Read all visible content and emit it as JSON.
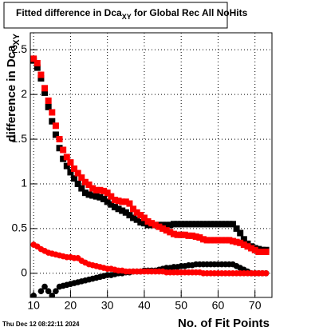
{
  "chart_data": {
    "type": "scatter",
    "title": "Fitted difference in Dca",
    "title_subscript": "XY",
    "title_suffix": " for Global Rec All NoHits",
    "y_label": "difference in Dca",
    "y_label_subscript": "XY",
    "x_label": "No. of Fit Points",
    "timestamp": "Thu Dec 12 08:22:11 2024",
    "x": [
      10,
      11,
      12,
      13,
      14,
      15,
      16,
      17,
      18,
      19,
      20,
      21,
      22,
      23,
      24,
      25,
      26,
      27,
      28,
      29,
      30,
      31,
      32,
      33,
      34,
      35,
      36,
      37,
      38,
      39,
      40,
      41,
      42,
      43,
      44,
      45,
      46,
      47,
      48,
      49,
      50,
      51,
      52,
      53,
      54,
      55,
      56,
      57,
      58,
      59,
      60,
      61,
      62,
      63,
      64,
      65,
      66,
      67,
      68,
      69,
      70,
      71,
      72,
      73
    ],
    "series": [
      {
        "color": "#000000",
        "marker": "square",
        "values": [
          2.38,
          2.3,
          2.18,
          2.02,
          1.86,
          1.7,
          1.55,
          1.4,
          1.28,
          1.2,
          1.13,
          1.06,
          1.0,
          0.95,
          0.9,
          0.88,
          0.87,
          0.86,
          0.85,
          0.83,
          0.8,
          0.77,
          0.74,
          0.72,
          0.7,
          0.68,
          0.65,
          0.62,
          0.6,
          0.57,
          0.56,
          0.54,
          0.54,
          0.54,
          0.54,
          0.54,
          0.54,
          0.54,
          0.55,
          0.55,
          0.55,
          0.55,
          0.55,
          0.55,
          0.55,
          0.55,
          0.55,
          0.55,
          0.55,
          0.55,
          0.55,
          0.55,
          0.55,
          0.55,
          0.55,
          0.5,
          0.45,
          0.38,
          0.33,
          0.3,
          0.28,
          0.27,
          0.26,
          0.26
        ]
      },
      {
        "color": "#000000",
        "marker": "circle",
        "values": [
          -0.25,
          -0.3,
          -0.2,
          -0.15,
          -0.2,
          -0.25,
          -0.2,
          -0.15,
          -0.14,
          -0.13,
          -0.12,
          -0.11,
          -0.1,
          -0.09,
          -0.08,
          -0.07,
          -0.06,
          -0.05,
          -0.04,
          -0.03,
          -0.02,
          -0.02,
          -0.01,
          0,
          0,
          0.01,
          0.01,
          0.02,
          0.02,
          0.02,
          0.03,
          0.03,
          0.03,
          0.03,
          0.04,
          0.05,
          0.06,
          0.06,
          0.07,
          0.07,
          0.08,
          0.08,
          0.09,
          0.09,
          0.1,
          0.1,
          0.1,
          0.1,
          0.1,
          0.1,
          0.1,
          0.1,
          0.1,
          0.1,
          0.1,
          0.08,
          0.06,
          0.04,
          0.02,
          0,
          0,
          0,
          0,
          0
        ]
      },
      {
        "color": "#ff0000",
        "marker": "square",
        "values": [
          2.4,
          2.35,
          2.22,
          2.07,
          1.93,
          1.8,
          1.65,
          1.5,
          1.38,
          1.3,
          1.24,
          1.17,
          1.12,
          1.07,
          1.02,
          0.99,
          0.95,
          0.93,
          0.93,
          0.92,
          0.9,
          0.86,
          0.82,
          0.81,
          0.8,
          0.8,
          0.78,
          0.72,
          0.68,
          0.65,
          0.62,
          0.58,
          0.56,
          0.54,
          0.52,
          0.5,
          0.48,
          0.46,
          0.44,
          0.43,
          0.43,
          0.43,
          0.42,
          0.42,
          0.41,
          0.4,
          0.38,
          0.37,
          0.37,
          0.37,
          0.37,
          0.37,
          0.37,
          0.37,
          0.36,
          0.35,
          0.34,
          0.32,
          0.3,
          0.28,
          0.26,
          0.24,
          0.24,
          0.24
        ]
      },
      {
        "color": "#ff0000",
        "marker": "circle",
        "values": [
          0.32,
          0.3,
          0.27,
          0.25,
          0.23,
          0.22,
          0.21,
          0.2,
          0.19,
          0.18,
          0.18,
          0.17,
          0.17,
          0.14,
          0.12,
          0.1,
          0.09,
          0.08,
          0.07,
          0.06,
          0.05,
          0.05,
          0.04,
          0.03,
          0.03,
          0.02,
          0.02,
          0.02,
          0.02,
          0.02,
          0.02,
          0.02,
          0.02,
          0.02,
          0.02,
          0.02,
          0.01,
          0.01,
          0.01,
          0.01,
          0.01,
          0.01,
          0.01,
          0.01,
          0.01,
          0.01,
          0,
          0,
          0,
          0,
          0,
          0,
          0,
          0,
          0,
          0,
          0,
          0,
          0,
          0,
          0,
          0,
          0,
          0
        ]
      }
    ],
    "xlim": [
      9.1,
      74.6
    ],
    "ylim": [
      -0.27,
      2.69
    ],
    "xticks": [
      10,
      20,
      30,
      40,
      50,
      60,
      70
    ],
    "yticks": [
      0,
      0.5,
      1,
      1.5,
      2,
      2.5
    ],
    "grid": true
  }
}
